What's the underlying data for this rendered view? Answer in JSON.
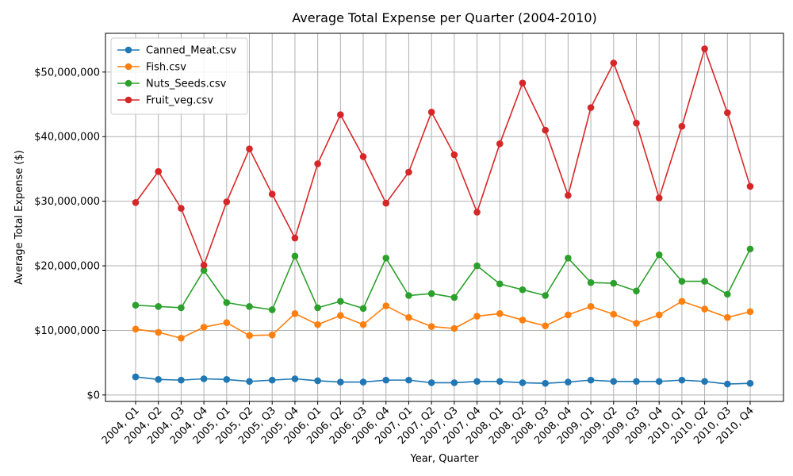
{
  "chart_data": {
    "type": "line",
    "title": "Average Total Expense per Quarter (2004-2010)",
    "xlabel": "Year, Quarter",
    "ylabel": "Average Total Expense ($)",
    "ylim": [
      -1000000,
      56000000
    ],
    "yticks": [
      0,
      10000000,
      20000000,
      30000000,
      40000000,
      50000000
    ],
    "ytick_labels": [
      "$0",
      "$10,000,000",
      "$20,000,000",
      "$30,000,000",
      "$40,000,000",
      "$50,000,000"
    ],
    "grid": true,
    "legend_position": "top-left",
    "categories": [
      "2004, Q1",
      "2004, Q2",
      "2004, Q3",
      "2004, Q4",
      "2005, Q1",
      "2005, Q2",
      "2005, Q3",
      "2005, Q4",
      "2006, Q1",
      "2006, Q2",
      "2006, Q3",
      "2006, Q4",
      "2007, Q1",
      "2007, Q2",
      "2007, Q3",
      "2007, Q4",
      "2008, Q1",
      "2008, Q2",
      "2008, Q3",
      "2008, Q4",
      "2009, Q1",
      "2009, Q2",
      "2009, Q3",
      "2009, Q4",
      "2010, Q1",
      "2010, Q2",
      "2010, Q3",
      "2010, Q4"
    ],
    "series": [
      {
        "name": "Canned_Meat.csv",
        "color": "#1f77b4",
        "values": [
          2800000,
          2400000,
          2300000,
          2500000,
          2400000,
          2100000,
          2300000,
          2500000,
          2200000,
          2000000,
          2000000,
          2300000,
          2300000,
          1900000,
          1900000,
          2100000,
          2100000,
          1900000,
          1800000,
          2000000,
          2300000,
          2100000,
          2100000,
          2100000,
          2300000,
          2100000,
          1700000,
          1800000
        ]
      },
      {
        "name": "Fish.csv",
        "color": "#ff7f0e",
        "values": [
          10200000,
          9700000,
          8800000,
          10500000,
          11200000,
          9200000,
          9300000,
          12600000,
          10900000,
          12300000,
          10900000,
          13800000,
          12000000,
          10600000,
          10300000,
          12200000,
          12600000,
          11600000,
          10700000,
          12400000,
          13700000,
          12500000,
          11100000,
          12400000,
          14500000,
          13300000,
          12000000,
          12900000
        ]
      },
      {
        "name": "Nuts_Seeds.csv",
        "color": "#2ca02c",
        "values": [
          13900000,
          13700000,
          13500000,
          19300000,
          14300000,
          13700000,
          13200000,
          21500000,
          13500000,
          14500000,
          13400000,
          21200000,
          15400000,
          15700000,
          15100000,
          20000000,
          17200000,
          16300000,
          15400000,
          21200000,
          17400000,
          17300000,
          16100000,
          21700000,
          17600000,
          17600000,
          15600000,
          22600000
        ]
      },
      {
        "name": "Fruit_veg.csv",
        "color": "#d62728",
        "values": [
          29800000,
          34600000,
          28900000,
          20100000,
          29900000,
          38100000,
          31100000,
          24300000,
          35800000,
          43400000,
          36900000,
          29700000,
          34500000,
          43800000,
          37200000,
          28300000,
          38900000,
          48300000,
          41000000,
          30900000,
          44500000,
          51400000,
          42100000,
          30500000,
          41600000,
          53600000,
          43700000,
          32300000
        ]
      }
    ]
  }
}
